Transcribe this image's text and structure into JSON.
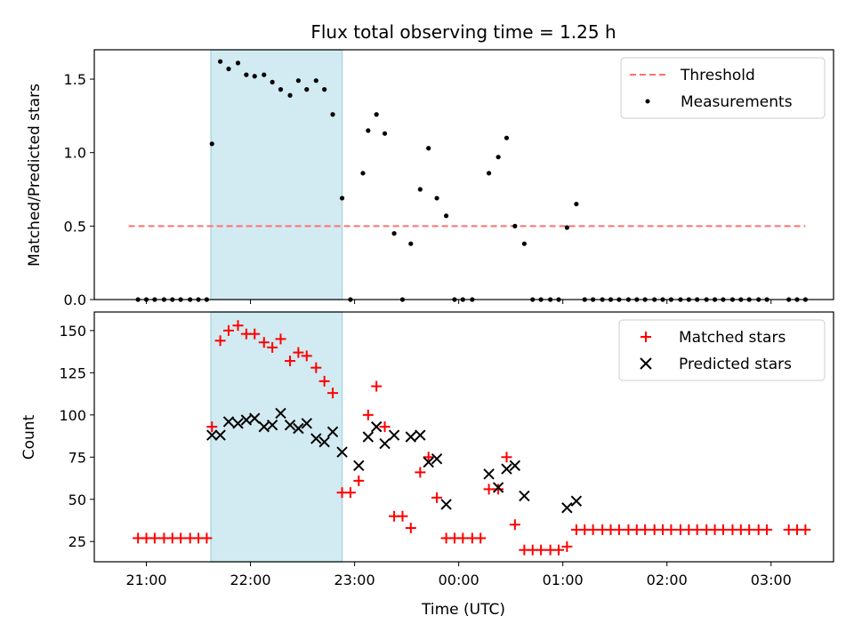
{
  "colors": {
    "highlight": "#add8e6",
    "threshold": "#ff7070",
    "matched": "#ff0000",
    "predicted": "#000000",
    "measurement": "#000000"
  },
  "chart_data": [
    {
      "type": "scatter",
      "title": "Flux total observing time = 1.25 h",
      "xlabel": "",
      "ylabel": "Matched/Predicted stars",
      "xlim_hours": [
        20.5,
        27.6
      ],
      "ylim": [
        0,
        1.7
      ],
      "yticks": [
        "0.0",
        "0.5",
        "1.0",
        "1.5"
      ],
      "highlight_span_hours": [
        21.62,
        22.88
      ],
      "legend_placement": "top-right",
      "grid": false,
      "series": [
        {
          "name": "Threshold",
          "kind": "dashed-line",
          "x": [
            20.83,
            27.33
          ],
          "y": [
            0.5,
            0.5
          ]
        },
        {
          "name": "Measurements",
          "kind": "points",
          "x": [
            20.92,
            21.0,
            21.08,
            21.17,
            21.25,
            21.33,
            21.42,
            21.5,
            21.58,
            21.63,
            21.71,
            21.79,
            21.88,
            21.96,
            22.04,
            22.13,
            22.21,
            22.29,
            22.38,
            22.46,
            22.54,
            22.63,
            22.71,
            22.79,
            22.88,
            22.96,
            23.08,
            23.13,
            23.21,
            23.29,
            23.38,
            23.46,
            23.54,
            23.63,
            23.71,
            23.79,
            23.88,
            23.96,
            24.04,
            24.13,
            24.29,
            24.38,
            24.46,
            24.54,
            24.63,
            24.71,
            24.79,
            24.88,
            24.96,
            25.04,
            25.13,
            25.21,
            25.29,
            25.38,
            25.46,
            25.54,
            25.63,
            25.71,
            25.79,
            25.88,
            25.96,
            26.04,
            26.13,
            26.21,
            26.29,
            26.38,
            26.46,
            26.54,
            26.63,
            26.71,
            26.79,
            26.88,
            26.96,
            27.17,
            27.25,
            27.33
          ],
          "y": [
            0,
            0,
            0,
            0,
            0,
            0,
            0,
            0,
            0,
            1.06,
            1.62,
            1.57,
            1.61,
            1.53,
            1.52,
            1.53,
            1.48,
            1.43,
            1.39,
            1.49,
            1.43,
            1.49,
            1.43,
            1.26,
            0.69,
            0,
            0.86,
            1.15,
            1.26,
            1.13,
            0.45,
            0,
            0.38,
            0.75,
            1.03,
            0.69,
            0.57,
            0,
            0,
            0,
            0.86,
            0.97,
            1.1,
            0.5,
            0.38,
            0,
            0,
            0,
            0,
            0.49,
            0.65,
            0,
            0,
            0,
            0,
            0,
            0,
            0,
            0,
            0,
            0,
            0,
            0,
            0,
            0,
            0,
            0,
            0,
            0,
            0,
            0,
            0,
            0,
            0,
            0,
            0
          ]
        }
      ]
    },
    {
      "type": "scatter",
      "title": "",
      "xlabel": "Time (UTC)",
      "ylabel": "Count",
      "xlim_hours": [
        20.5,
        27.6
      ],
      "ylim": [
        13,
        161
      ],
      "yticks": [
        25,
        50,
        75,
        100,
        125,
        150
      ],
      "xtick_hours": [
        21,
        22,
        23,
        24,
        25,
        26,
        27
      ],
      "xticks": [
        "21:00",
        "22:00",
        "23:00",
        "00:00",
        "01:00",
        "02:00",
        "03:00"
      ],
      "highlight_span_hours": [
        21.62,
        22.88
      ],
      "legend_placement": "top-right",
      "grid": false,
      "series": [
        {
          "name": "Matched stars",
          "marker": "plus",
          "x": [
            20.92,
            21.0,
            21.08,
            21.17,
            21.25,
            21.33,
            21.42,
            21.5,
            21.58,
            21.63,
            21.71,
            21.79,
            21.88,
            21.96,
            22.04,
            22.13,
            22.21,
            22.29,
            22.38,
            22.46,
            22.54,
            22.63,
            22.71,
            22.79,
            22.88,
            22.96,
            23.04,
            23.13,
            23.21,
            23.29,
            23.38,
            23.46,
            23.54,
            23.63,
            23.71,
            23.79,
            23.88,
            23.96,
            24.04,
            24.13,
            24.21,
            24.29,
            24.38,
            24.46,
            24.54,
            24.63,
            24.71,
            24.79,
            24.88,
            24.96,
            25.04,
            25.13,
            25.21,
            25.29,
            25.38,
            25.46,
            25.54,
            25.63,
            25.71,
            25.79,
            25.88,
            25.96,
            26.04,
            26.13,
            26.21,
            26.29,
            26.38,
            26.46,
            26.54,
            26.63,
            26.71,
            26.79,
            26.88,
            26.96,
            27.17,
            27.25,
            27.33
          ],
          "y": [
            27,
            27,
            27,
            27,
            27,
            27,
            27,
            27,
            27,
            93,
            144,
            150,
            153,
            148,
            148,
            143,
            140,
            145,
            132,
            137,
            135,
            128,
            120,
            113,
            54,
            54,
            61,
            100,
            117,
            93,
            40,
            40,
            33,
            66,
            75,
            51,
            27,
            27,
            27,
            27,
            27,
            56,
            56,
            75,
            35,
            20,
            20,
            20,
            20,
            20,
            22,
            32,
            32,
            32,
            32,
            32,
            32,
            32,
            32,
            32,
            32,
            32,
            32,
            32,
            32,
            32,
            32,
            32,
            32,
            32,
            32,
            32,
            32,
            32,
            32,
            32,
            32
          ]
        },
        {
          "name": "Predicted stars",
          "marker": "x",
          "x": [
            21.63,
            21.71,
            21.79,
            21.88,
            21.96,
            22.04,
            22.13,
            22.21,
            22.29,
            22.38,
            22.46,
            22.54,
            22.63,
            22.71,
            22.79,
            22.88,
            23.04,
            23.13,
            23.21,
            23.29,
            23.38,
            23.54,
            23.63,
            23.71,
            23.79,
            23.88,
            24.29,
            24.38,
            24.46,
            24.54,
            24.63,
            25.04,
            25.13
          ],
          "y": [
            88,
            88,
            96,
            95,
            97,
            98,
            93,
            94,
            101,
            94,
            92,
            95,
            86,
            84,
            90,
            78,
            70,
            87,
            93,
            83,
            88,
            87,
            88,
            72,
            74,
            47,
            65,
            57,
            68,
            70,
            52,
            45,
            49
          ]
        }
      ]
    }
  ]
}
